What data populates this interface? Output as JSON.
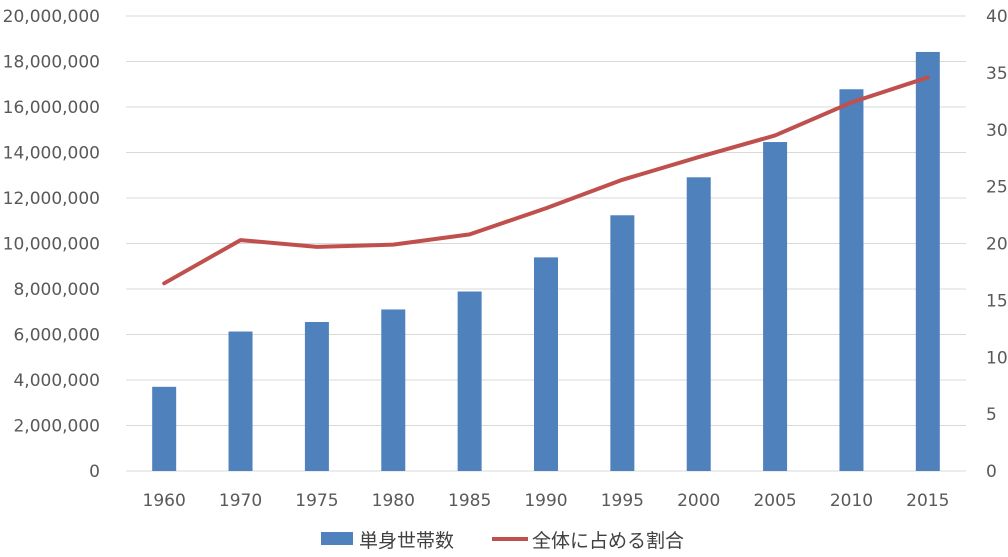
{
  "chart_data": {
    "type": "bar",
    "title": "",
    "xlabel": "",
    "ylabel": "",
    "categories": [
      "1960",
      "1970",
      "1975",
      "1980",
      "1985",
      "1990",
      "1995",
      "2000",
      "2005",
      "2010",
      "2015"
    ],
    "series": [
      {
        "name": "単身世帯数",
        "type": "bar",
        "axis": "left",
        "color": "#4f81bd",
        "values": [
          3700000,
          6130000,
          6550000,
          7100000,
          7890000,
          9390000,
          11240000,
          12910000,
          14460000,
          16780000,
          18420000
        ]
      },
      {
        "name": "全体に占める割合",
        "type": "line",
        "axis": "right",
        "color": "#c0504d",
        "values": [
          16.5,
          20.3,
          19.7,
          19.9,
          20.8,
          23.1,
          25.6,
          27.6,
          29.5,
          32.4,
          34.6
        ]
      }
    ],
    "ylim": [
      0,
      20000000
    ],
    "y_ticks": [
      "0",
      "2,000,000",
      "4,000,000",
      "6,000,000",
      "8,000,000",
      "10,000,000",
      "12,000,000",
      "14,000,000",
      "16,000,000",
      "18,000,000",
      "20,000,000"
    ],
    "y2lim": [
      0,
      40
    ],
    "y2_ticks": [
      "0",
      "5",
      "10",
      "15",
      "20",
      "25",
      "30",
      "35",
      "40"
    ],
    "grid": true,
    "legend_position": "bottom"
  }
}
